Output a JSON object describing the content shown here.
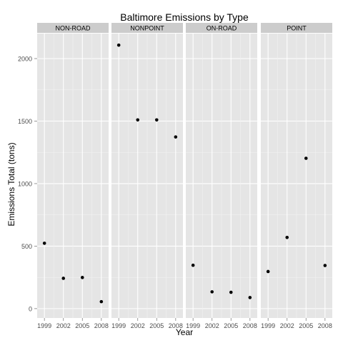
{
  "chart_data": {
    "type": "scatter",
    "title": "Baltimore Emissions by Type",
    "xlabel": "Year",
    "ylabel": "Emissions Total (tons)",
    "x_ticks": [
      "1999",
      "2002",
      "2005",
      "2008"
    ],
    "y_ticks": [
      "0",
      "500",
      "1000",
      "1500",
      "2000"
    ],
    "ylim": [
      -75,
      2200
    ],
    "grid": true,
    "facets": [
      {
        "name": "NON-ROAD",
        "x": [
          1999,
          2002,
          2005,
          2008
        ],
        "y": [
          522.94,
          242.57,
          248.93,
          55.82
        ]
      },
      {
        "name": "NONPOINT",
        "x": [
          1999,
          2002,
          2005,
          2008
        ],
        "y": [
          2107.63,
          1509.5,
          1509.5,
          1373.21
        ]
      },
      {
        "name": "ON-ROAD",
        "x": [
          1999,
          2002,
          2005,
          2008
        ],
        "y": [
          346.82,
          134.31,
          130.43,
          88.28
        ]
      },
      {
        "name": "POINT",
        "x": [
          1999,
          2002,
          2005,
          2008
        ],
        "y": [
          296.8,
          569.26,
          1202.49,
          344.98
        ]
      }
    ]
  },
  "colors": {
    "panel_background": "#e5e5e5",
    "strip_background": "#cccccc",
    "gridline": "#ffffff",
    "point": "#000000",
    "text": "#000000",
    "tick_text": "#4d4d4d"
  }
}
